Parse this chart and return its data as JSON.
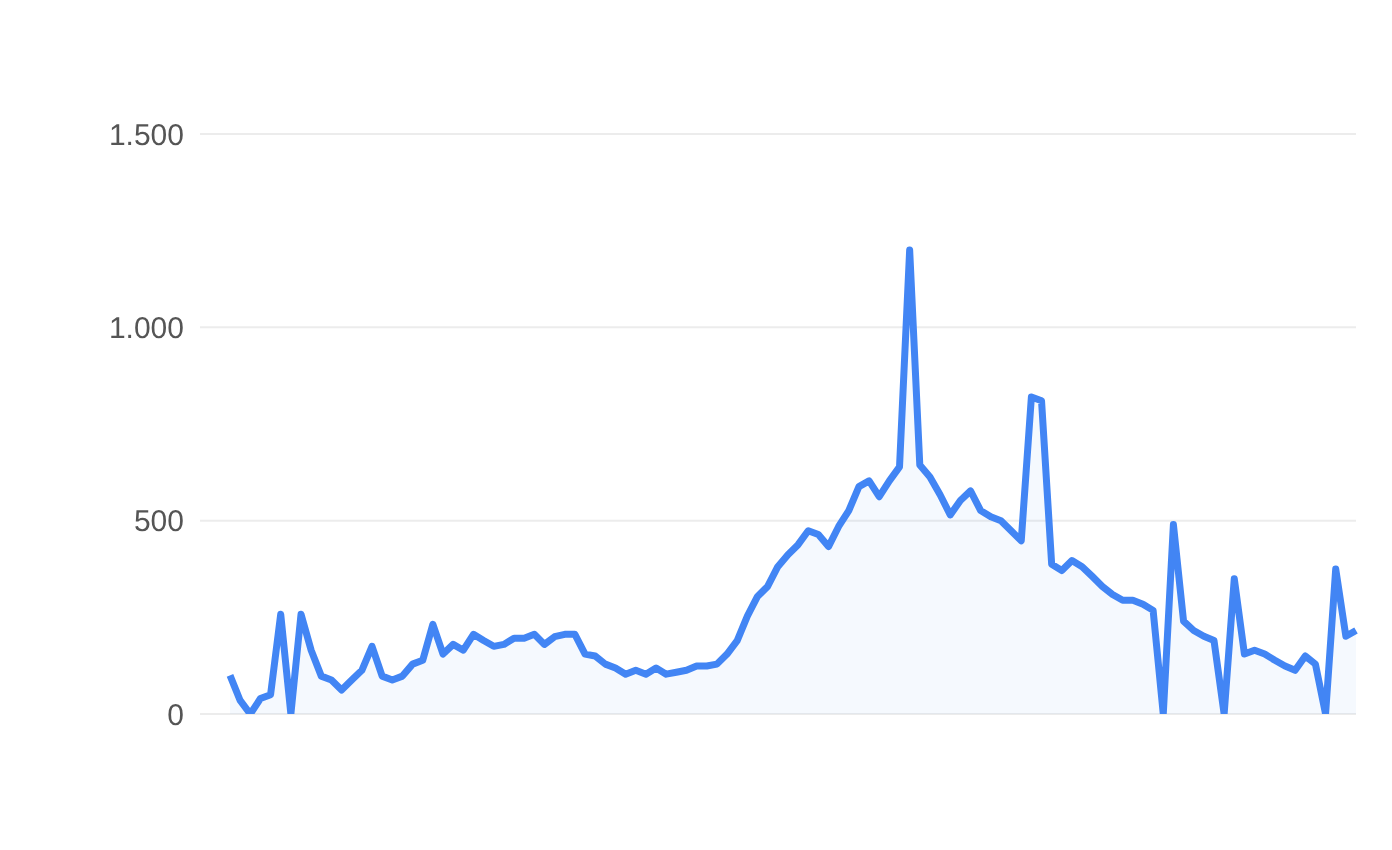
{
  "chart_data": {
    "type": "area",
    "categories": [
      null,
      null,
      null,
      null,
      null,
      null,
      null,
      null,
      null,
      null,
      null,
      null,
      null,
      null,
      null,
      null,
      null,
      null,
      null,
      null,
      null,
      null,
      null,
      null,
      null,
      null,
      null,
      null,
      null,
      null,
      null,
      null,
      null,
      null,
      null,
      null,
      null,
      null,
      null,
      null,
      null,
      null,
      null,
      null,
      null,
      null,
      null,
      null,
      null,
      null,
      null,
      null,
      null,
      null,
      null,
      null,
      null,
      null,
      null,
      null,
      null,
      null,
      null,
      null,
      null,
      null,
      null,
      null,
      null,
      null,
      null,
      null,
      null,
      null,
      null,
      null,
      null,
      null,
      null,
      null,
      null,
      null,
      null,
      null,
      null,
      null,
      null,
      null,
      null,
      null,
      null,
      null,
      null,
      null,
      null,
      null,
      null,
      null,
      null,
      null,
      null,
      null,
      null,
      null,
      null,
      null,
      null,
      null,
      null,
      null,
      null,
      null
    ],
    "series": [
      {
        "color": "#4285f4",
        "values": [
          100,
          35,
          0,
          40,
          50,
          258,
          0,
          258,
          165,
          98,
          88,
          62,
          88,
          113,
          175,
          98,
          88,
          98,
          129,
          139,
          232,
          155,
          180,
          165,
          206,
          190,
          175,
          180,
          196,
          196,
          206,
          180,
          200,
          206,
          206,
          155,
          150,
          129,
          119,
          103,
          113,
          103,
          119,
          103,
          108,
          113,
          124,
          124,
          129,
          155,
          190,
          253,
          304,
          330,
          381,
          412,
          438,
          474,
          464,
          433,
          485,
          526,
          588,
          603,
          562,
          603,
          639,
          1200,
          644,
          613,
          567,
          515,
          552,
          577,
          526,
          510,
          500,
          474,
          448,
          820,
          810,
          387,
          371,
          397,
          381,
          356,
          330,
          309,
          294,
          294,
          284,
          268,
          0,
          490,
          240,
          216,
          201,
          190,
          0,
          350,
          155,
          165,
          155,
          139,
          124,
          113,
          150,
          129,
          0,
          375,
          201,
          216
        ]
      }
    ],
    "ylim": [
      0,
      1500
    ],
    "yticks": [
      0,
      500,
      {
        "value": 1000,
        "label": "1.000"
      },
      {
        "value": 1500,
        "label": "1.500"
      }
    ],
    "grid": "y",
    "tick_labels": "y"
  }
}
